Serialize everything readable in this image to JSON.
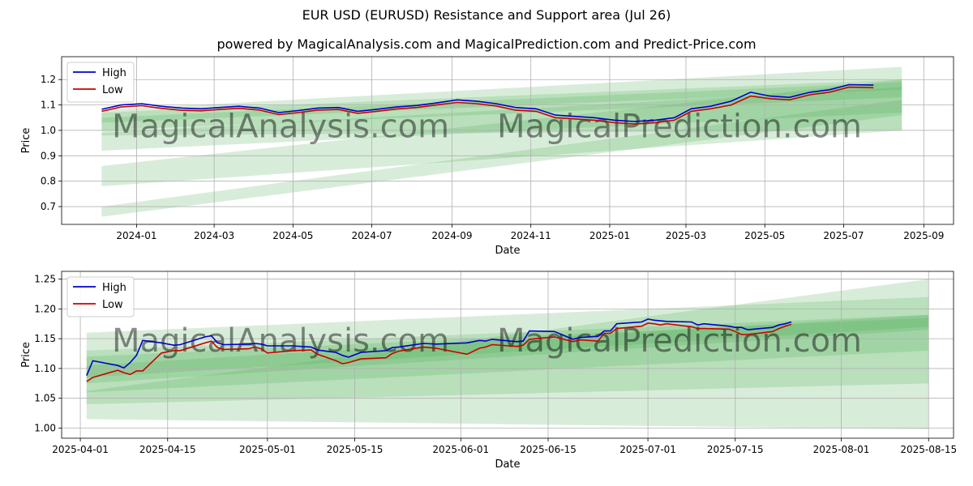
{
  "title": "EUR USD (EURUSD) Resistance and Support area (Jul 26)",
  "subtitle": "powered by MagicalAnalysis.com and MagicalPrediction.com and Predict-Price.com",
  "watermark_left": "MagicalAnalysis.com",
  "watermark_right": "MagicalPrediction.com",
  "colors": {
    "high": "#0000cc",
    "low": "#cc0000",
    "band": "#4caf50",
    "grid": "#b0b0b0"
  },
  "chart_data": [
    {
      "type": "line",
      "xlabel": "Date",
      "ylabel": "Price",
      "x_tick_labels": [
        "2024-01",
        "2024-03",
        "2024-05",
        "2024-07",
        "2024-09",
        "2024-11",
        "2025-01",
        "2025-03",
        "2025-05",
        "2025-07",
        "2025-09"
      ],
      "y_tick_labels": [
        "0.7",
        "0.8",
        "0.9",
        "1.0",
        "1.1",
        "1.2"
      ],
      "ylim": [
        0.63,
        1.29
      ],
      "xlim": [
        "2023-11-04",
        "2025-09-24"
      ],
      "grid": true,
      "legend": "top-left",
      "series": [
        {
          "name": "High",
          "color": "#0000cc",
          "x": [
            "2023-12-05",
            "2023-12-20",
            "2024-01-05",
            "2024-01-20",
            "2024-02-05",
            "2024-02-20",
            "2024-03-05",
            "2024-03-20",
            "2024-04-05",
            "2024-04-20",
            "2024-05-05",
            "2024-05-20",
            "2024-06-05",
            "2024-06-20",
            "2024-07-05",
            "2024-07-20",
            "2024-08-05",
            "2024-08-20",
            "2024-09-05",
            "2024-09-20",
            "2024-10-05",
            "2024-10-20",
            "2024-11-05",
            "2024-11-20",
            "2024-12-05",
            "2024-12-20",
            "2025-01-05",
            "2025-01-20",
            "2025-02-05",
            "2025-02-20",
            "2025-03-05",
            "2025-03-20",
            "2025-04-05",
            "2025-04-20",
            "2025-05-05",
            "2025-05-20",
            "2025-06-05",
            "2025-06-20",
            "2025-07-05",
            "2025-07-24"
          ],
          "y": [
            1.083,
            1.1,
            1.105,
            1.095,
            1.088,
            1.085,
            1.09,
            1.095,
            1.088,
            1.07,
            1.078,
            1.088,
            1.09,
            1.075,
            1.083,
            1.092,
            1.098,
            1.108,
            1.12,
            1.115,
            1.105,
            1.09,
            1.085,
            1.06,
            1.055,
            1.05,
            1.04,
            1.035,
            1.04,
            1.05,
            1.085,
            1.095,
            1.115,
            1.15,
            1.135,
            1.13,
            1.15,
            1.16,
            1.18,
            1.178
          ]
        },
        {
          "name": "Low",
          "color": "#cc0000",
          "x": [
            "2023-12-05",
            "2023-12-20",
            "2024-01-05",
            "2024-01-20",
            "2024-02-05",
            "2024-02-20",
            "2024-03-05",
            "2024-03-20",
            "2024-04-05",
            "2024-04-20",
            "2024-05-05",
            "2024-05-20",
            "2024-06-05",
            "2024-06-20",
            "2024-07-05",
            "2024-07-20",
            "2024-08-05",
            "2024-08-20",
            "2024-09-05",
            "2024-09-20",
            "2024-10-05",
            "2024-10-20",
            "2024-11-05",
            "2024-11-20",
            "2024-12-05",
            "2024-12-20",
            "2025-01-05",
            "2025-01-20",
            "2025-02-05",
            "2025-02-20",
            "2025-03-05",
            "2025-03-20",
            "2025-04-05",
            "2025-04-20",
            "2025-05-05",
            "2025-05-20",
            "2025-06-05",
            "2025-06-20",
            "2025-07-05",
            "2025-07-24"
          ],
          "y": [
            1.075,
            1.092,
            1.097,
            1.087,
            1.079,
            1.077,
            1.082,
            1.087,
            1.08,
            1.062,
            1.07,
            1.08,
            1.082,
            1.067,
            1.075,
            1.084,
            1.09,
            1.1,
            1.11,
            1.105,
            1.096,
            1.08,
            1.075,
            1.05,
            1.045,
            1.04,
            1.03,
            1.025,
            1.03,
            1.04,
            1.075,
            1.085,
            1.1,
            1.135,
            1.125,
            1.12,
            1.14,
            1.15,
            1.17,
            1.168
          ]
        }
      ],
      "bands": [
        {
          "x": [
            "2023-12-05",
            "2025-08-15"
          ],
          "lower": [
            0.66,
            1.06
          ],
          "upper": [
            0.7,
            1.12
          ]
        },
        {
          "x": [
            "2023-12-05",
            "2025-08-15"
          ],
          "lower": [
            0.78,
            1.0
          ],
          "upper": [
            0.86,
            1.2
          ]
        },
        {
          "x": [
            "2023-12-05",
            "2025-08-15"
          ],
          "lower": [
            0.92,
            1.07
          ],
          "upper": [
            0.99,
            1.17
          ]
        },
        {
          "x": [
            "2023-12-05",
            "2025-08-15"
          ],
          "lower": [
            1.0,
            1.13
          ],
          "upper": [
            1.05,
            1.19
          ]
        },
        {
          "x": [
            "2023-12-05",
            "2025-08-15"
          ],
          "lower": [
            1.03,
            1.16
          ],
          "upper": [
            1.07,
            1.2
          ]
        },
        {
          "x": [
            "2023-12-05",
            "2025-08-15"
          ],
          "lower": [
            0.98,
            1.0
          ],
          "upper": [
            1.08,
            1.25
          ]
        }
      ]
    },
    {
      "type": "line",
      "xlabel": "Date",
      "ylabel": "Price",
      "x_tick_labels": [
        "2025-04-01",
        "2025-04-15",
        "2025-05-01",
        "2025-05-15",
        "2025-06-01",
        "2025-06-15",
        "2025-07-01",
        "2025-07-15",
        "2025-08-01",
        "2025-08-15"
      ],
      "y_tick_labels": [
        "1.00",
        "1.05",
        "1.10",
        "1.15",
        "1.20",
        "1.25"
      ],
      "ylim": [
        0.983,
        1.263
      ],
      "xlim": [
        "2025-03-29",
        "2025-08-19"
      ],
      "grid": true,
      "legend": "top-left",
      "series": [
        {
          "name": "High",
          "color": "#0000cc",
          "x": [
            "2025-04-02",
            "2025-04-03",
            "2025-04-07",
            "2025-04-08",
            "2025-04-09",
            "2025-04-10",
            "2025-04-11",
            "2025-04-14",
            "2025-04-16",
            "2025-04-17",
            "2025-04-21",
            "2025-04-22",
            "2025-04-23",
            "2025-04-24",
            "2025-04-28",
            "2025-04-29",
            "2025-04-30",
            "2025-05-01",
            "2025-05-05",
            "2025-05-08",
            "2025-05-09",
            "2025-05-12",
            "2025-05-13",
            "2025-05-14",
            "2025-05-16",
            "2025-05-20",
            "2025-05-21",
            "2025-05-22",
            "2025-05-26",
            "2025-05-28",
            "2025-06-02",
            "2025-06-04",
            "2025-06-05",
            "2025-06-06",
            "2025-06-10",
            "2025-06-11",
            "2025-06-12",
            "2025-06-16",
            "2025-06-19",
            "2025-06-20",
            "2025-06-23",
            "2025-06-24",
            "2025-06-25",
            "2025-06-26",
            "2025-06-30",
            "2025-07-01",
            "2025-07-02",
            "2025-07-03",
            "2025-07-04",
            "2025-07-08",
            "2025-07-09",
            "2025-07-10",
            "2025-07-14",
            "2025-07-15",
            "2025-07-16",
            "2025-07-17",
            "2025-07-21",
            "2025-07-22",
            "2025-07-23",
            "2025-07-24"
          ],
          "y": [
            1.088,
            1.113,
            1.105,
            1.101,
            1.11,
            1.122,
            1.147,
            1.143,
            1.139,
            1.14,
            1.153,
            1.155,
            1.143,
            1.14,
            1.141,
            1.142,
            1.141,
            1.138,
            1.138,
            1.136,
            1.131,
            1.127,
            1.122,
            1.119,
            1.127,
            1.13,
            1.135,
            1.136,
            1.142,
            1.141,
            1.143,
            1.147,
            1.146,
            1.149,
            1.145,
            1.146,
            1.163,
            1.162,
            1.149,
            1.152,
            1.154,
            1.163,
            1.163,
            1.175,
            1.178,
            1.183,
            1.181,
            1.18,
            1.179,
            1.178,
            1.173,
            1.175,
            1.171,
            1.169,
            1.169,
            1.165,
            1.169,
            1.173,
            1.175,
            1.178
          ]
        },
        {
          "name": "Low",
          "color": "#cc0000",
          "x": [
            "2025-04-02",
            "2025-04-03",
            "2025-04-07",
            "2025-04-08",
            "2025-04-09",
            "2025-04-10",
            "2025-04-11",
            "2025-04-14",
            "2025-04-16",
            "2025-04-17",
            "2025-04-21",
            "2025-04-22",
            "2025-04-23",
            "2025-04-24",
            "2025-04-28",
            "2025-04-29",
            "2025-04-30",
            "2025-05-01",
            "2025-05-05",
            "2025-05-08",
            "2025-05-09",
            "2025-05-12",
            "2025-05-13",
            "2025-05-14",
            "2025-05-16",
            "2025-05-20",
            "2025-05-21",
            "2025-05-22",
            "2025-05-26",
            "2025-05-28",
            "2025-06-02",
            "2025-06-04",
            "2025-06-05",
            "2025-06-06",
            "2025-06-10",
            "2025-06-11",
            "2025-06-12",
            "2025-06-16",
            "2025-06-19",
            "2025-06-20",
            "2025-06-23",
            "2025-06-24",
            "2025-06-25",
            "2025-06-26",
            "2025-06-30",
            "2025-07-01",
            "2025-07-02",
            "2025-07-03",
            "2025-07-04",
            "2025-07-08",
            "2025-07-09",
            "2025-07-10",
            "2025-07-14",
            "2025-07-15",
            "2025-07-16",
            "2025-07-17",
            "2025-07-21",
            "2025-07-22",
            "2025-07-23",
            "2025-07-24"
          ],
          "y": [
            1.078,
            1.085,
            1.097,
            1.093,
            1.09,
            1.096,
            1.096,
            1.126,
            1.13,
            1.13,
            1.143,
            1.146,
            1.135,
            1.132,
            1.133,
            1.136,
            1.133,
            1.126,
            1.13,
            1.131,
            1.124,
            1.113,
            1.108,
            1.11,
            1.116,
            1.118,
            1.125,
            1.129,
            1.136,
            1.134,
            1.124,
            1.134,
            1.136,
            1.14,
            1.137,
            1.139,
            1.149,
            1.153,
            1.145,
            1.148,
            1.146,
            1.159,
            1.159,
            1.167,
            1.171,
            1.176,
            1.175,
            1.173,
            1.175,
            1.17,
            1.167,
            1.167,
            1.166,
            1.162,
            1.157,
            1.157,
            1.162,
            1.167,
            1.171,
            1.174
          ]
        }
      ],
      "bands": [
        {
          "x": [
            "2025-04-02",
            "2025-08-15"
          ],
          "lower": [
            1.015,
            0.998
          ],
          "upper": [
            1.062,
            1.25
          ]
        },
        {
          "x": [
            "2025-04-02",
            "2025-08-15"
          ],
          "lower": [
            1.04,
            1.075
          ],
          "upper": [
            1.16,
            1.22
          ]
        },
        {
          "x": [
            "2025-04-02",
            "2025-08-15"
          ],
          "lower": [
            1.06,
            1.13
          ],
          "upper": [
            1.13,
            1.19
          ]
        },
        {
          "x": [
            "2025-04-02",
            "2025-08-15"
          ],
          "lower": [
            1.075,
            1.165
          ],
          "upper": [
            1.105,
            1.19
          ]
        },
        {
          "x": [
            "2025-04-02",
            "2025-08-15"
          ],
          "lower": [
            1.085,
            1.17
          ],
          "upper": [
            1.12,
            1.185
          ]
        }
      ]
    }
  ]
}
